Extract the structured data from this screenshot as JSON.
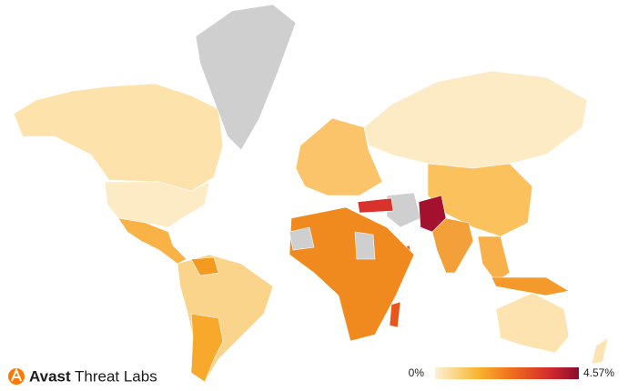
{
  "brand": {
    "name": "Avast",
    "product": "Threat Labs"
  },
  "legend": {
    "min": {
      "value": 0,
      "label": "0%"
    },
    "max": {
      "value": 4.57,
      "label": "4.57%"
    }
  }
}
